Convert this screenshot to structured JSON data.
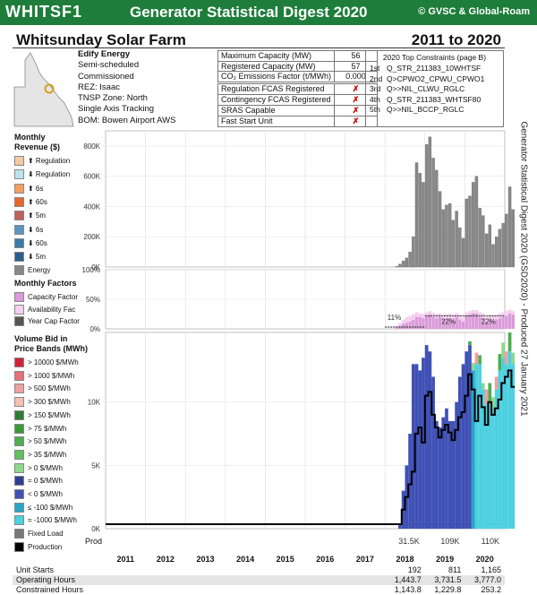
{
  "header": {
    "code": "WHITSF1",
    "title": "Generator Statistical Digest 2020",
    "copyright": "© GVSC & Global-Roam"
  },
  "station": {
    "name": "Whitsunday Solar Farm",
    "years": "2011 to 2020"
  },
  "info": [
    "Edify Energy",
    "Semi-scheduled",
    "Commissioned",
    "REZ: Isaac",
    "TNSP Zone: North",
    "Single Axis Tracking",
    "BOM: Bowen Airport AWS"
  ],
  "capacity": [
    {
      "label": "Maximum Capacity (MW)",
      "value": "56"
    },
    {
      "label": "Registered Capacity (MW)",
      "value": "57"
    },
    {
      "label": "CO₂ Emissions Factor (t/MWh)",
      "value": "0.000"
    }
  ],
  "services": [
    {
      "label": "Regulation FCAS Registered",
      "value": "✗"
    },
    {
      "label": "Contingency FCAS Registered",
      "value": "✗"
    },
    {
      "label": "SRAS Capable",
      "value": "✗"
    },
    {
      "label": "Fast Start Unit",
      "value": "✗"
    }
  ],
  "constraints": {
    "title": "2020 Top Constraints (page B)",
    "items": [
      {
        "rank": "1st",
        "name": "Q_STR_211383_10WHTSF"
      },
      {
        "rank": "2nd",
        "name": "Q>CPWO2_CPWU_CPWO1"
      },
      {
        "rank": "3rd",
        "name": "Q>>NIL_CLWU_RGLC"
      },
      {
        "rank": "4th",
        "name": "Q_STR_211383_WHTSF80"
      },
      {
        "rank": "5th",
        "name": "Q>>NIL_BCCP_RGLC"
      }
    ]
  },
  "revenue_legend": {
    "title": "Monthly\nRevenue ($)",
    "items": [
      {
        "label": "⬆ Regulation",
        "color": "#f4c9a0"
      },
      {
        "label": "⬇ Regulation",
        "color": "#bfe3ee"
      },
      {
        "label": "⬆ 6s",
        "color": "#f3a060"
      },
      {
        "label": "⬆ 60s",
        "color": "#e8672a"
      },
      {
        "label": "⬆ 5m",
        "color": "#c0605a"
      },
      {
        "label": "⬇ 6s",
        "color": "#5a96c0"
      },
      {
        "label": "⬇ 60s",
        "color": "#3c7aa8"
      },
      {
        "label": "⬇ 5m",
        "color": "#2a6090"
      },
      {
        "label": "Energy",
        "color": "#888888"
      }
    ]
  },
  "factors_legend": {
    "title": "Monthly Factors",
    "items": [
      {
        "label": "Capacity Factor",
        "color": "#d99ad9"
      },
      {
        "label": "Availability Fac",
        "color": "#f5d0f0"
      },
      {
        "label": "Year Cap Factor",
        "color": "#555555"
      }
    ]
  },
  "bands_legend": {
    "title": "Volume Bid in\nPrice Bands (MWh)",
    "items": [
      {
        "label": "> 10000 $/MWh",
        "color": "#d0203a"
      },
      {
        "label": "> 1000 $/MWh",
        "color": "#e8707a"
      },
      {
        "label": "> 500 $/MWh",
        "color": "#f0a0a0"
      },
      {
        "label": "> 300 $/MWh",
        "color": "#f5c0b0"
      },
      {
        "label": "> 150 $/MWh",
        "color": "#2e7d32"
      },
      {
        "label": "> 75 $/MWh",
        "color": "#3a9a3a"
      },
      {
        "label": "> 50 $/MWh",
        "color": "#4caf50"
      },
      {
        "label": "> 35 $/MWh",
        "color": "#5ec05e"
      },
      {
        "label": "> 0 $/MWh",
        "color": "#8ed88e"
      },
      {
        "label": "= 0 $/MWh",
        "color": "#2c3e95"
      },
      {
        "label": "< 0 $/MWh",
        "color": "#3f51b5"
      },
      {
        "label": "≤ -100 $/MWh",
        "color": "#26a6c8"
      },
      {
        "label": "= -1000 $/MWh",
        "color": "#4dd0e1"
      },
      {
        "label": "Fixed Load",
        "color": "#777777"
      },
      {
        "label": "Production",
        "color": "#000000"
      }
    ]
  },
  "side_text": "Generator Statistical Digest 2020 (GSD2020) - Produced 27 January 2021",
  "prod_label": "Prod",
  "chart_data": {
    "years": [
      "2011",
      "2012",
      "2013",
      "2014",
      "2015",
      "2016",
      "2017",
      "2018",
      "2019",
      "2020"
    ],
    "revenue": {
      "type": "bar",
      "ylim": [
        0,
        900000
      ],
      "ticks": [
        0,
        200000,
        400000,
        600000,
        800000
      ],
      "tick_labels": [
        "0K",
        "200K",
        "400K",
        "600K",
        "800K"
      ],
      "start_index": 87,
      "energy": [
        5000,
        20000,
        40000,
        60000,
        100000,
        200000,
        690000,
        620000,
        560000,
        810000,
        860000,
        720000,
        640000,
        500000,
        380000,
        410000,
        420000,
        310000,
        370000,
        260000,
        190000,
        450000,
        470000,
        560000,
        600000,
        390000,
        340000,
        220000,
        280000,
        150000,
        200000,
        250000,
        290000,
        350000,
        530000,
        380000
      ]
    },
    "factors": {
      "type": "bar",
      "ylim": [
        0,
        1
      ],
      "ticks": [
        0,
        0.5,
        1
      ],
      "tick_labels": [
        "0%",
        "50%",
        "100%"
      ],
      "year_cap_factor": {
        "2018": "11%",
        "2019": "22%",
        "2020": "22%"
      },
      "start_index": 87,
      "capacity": [
        0.02,
        0.05,
        0.08,
        0.1,
        0.12,
        0.15,
        0.2,
        0.2,
        0.18,
        0.22,
        0.24,
        0.2,
        0.18,
        0.2,
        0.16,
        0.17,
        0.18,
        0.15,
        0.2,
        0.16,
        0.12,
        0.22,
        0.24,
        0.26,
        0.26,
        0.2,
        0.18,
        0.12,
        0.16,
        0.14,
        0.16,
        0.18,
        0.2,
        0.22,
        0.26,
        0.24
      ],
      "availability": [
        0.05,
        0.1,
        0.15,
        0.2,
        0.22,
        0.25,
        0.28,
        0.26,
        0.25,
        0.28,
        0.3,
        0.27,
        0.25,
        0.26,
        0.24,
        0.25,
        0.26,
        0.24,
        0.27,
        0.24,
        0.2,
        0.28,
        0.3,
        0.32,
        0.32,
        0.28,
        0.26,
        0.2,
        0.24,
        0.22,
        0.24,
        0.26,
        0.28,
        0.3,
        0.32,
        0.3
      ]
    },
    "bands": {
      "type": "area",
      "ylim": [
        0,
        15500
      ],
      "ticks": [
        0,
        5000,
        10000
      ],
      "tick_labels": [
        "0K",
        "5K",
        "10K"
      ],
      "start_index": 87,
      "neg": [
        0,
        300,
        3000,
        5000,
        7500,
        13000,
        13000,
        12500,
        13500,
        14500,
        14000,
        12000,
        8500,
        8000,
        8800,
        9500,
        8500,
        8500,
        10000,
        12000,
        13000,
        14000,
        14500,
        12500,
        13000,
        13000,
        11000,
        9800,
        10000,
        9500,
        11000,
        12500,
        13500,
        13000,
        14000,
        13000
      ],
      "pos": [
        0,
        0,
        0,
        0,
        0,
        0,
        0,
        0,
        0,
        0,
        0,
        0,
        0,
        0,
        0,
        0,
        0,
        0,
        0,
        0,
        0,
        0,
        300,
        600,
        900,
        700,
        500,
        1200,
        1500,
        900,
        1000,
        1300,
        1200,
        1000,
        1500,
        900
      ],
      "production": [
        0,
        200,
        1500,
        2500,
        3500,
        4500,
        7500,
        8000,
        6800,
        10500,
        10800,
        9000,
        8000,
        7200,
        7800,
        8200,
        7600,
        7000,
        7800,
        8800,
        9200,
        10500,
        12200,
        11000,
        8500,
        10500,
        9600,
        8200,
        10000,
        9000,
        9500,
        10200,
        11500,
        12000,
        12500,
        11200
      ]
    },
    "production_totals": {
      "2018": "31.5K",
      "2019": "109K",
      "2020": "110K"
    }
  },
  "stats": [
    {
      "label": "Unit Starts",
      "values": {
        "2018": "192",
        "2019": "811",
        "2020": "1,165"
      }
    },
    {
      "label": "Operating Hours",
      "values": {
        "2018": "1,443.7",
        "2019": "3,731.5",
        "2020": "3,777.0"
      }
    },
    {
      "label": "Constrained Hours",
      "values": {
        "2018": "1,143.8",
        "2019": "1,229.8",
        "2020": "253.2"
      }
    }
  ]
}
